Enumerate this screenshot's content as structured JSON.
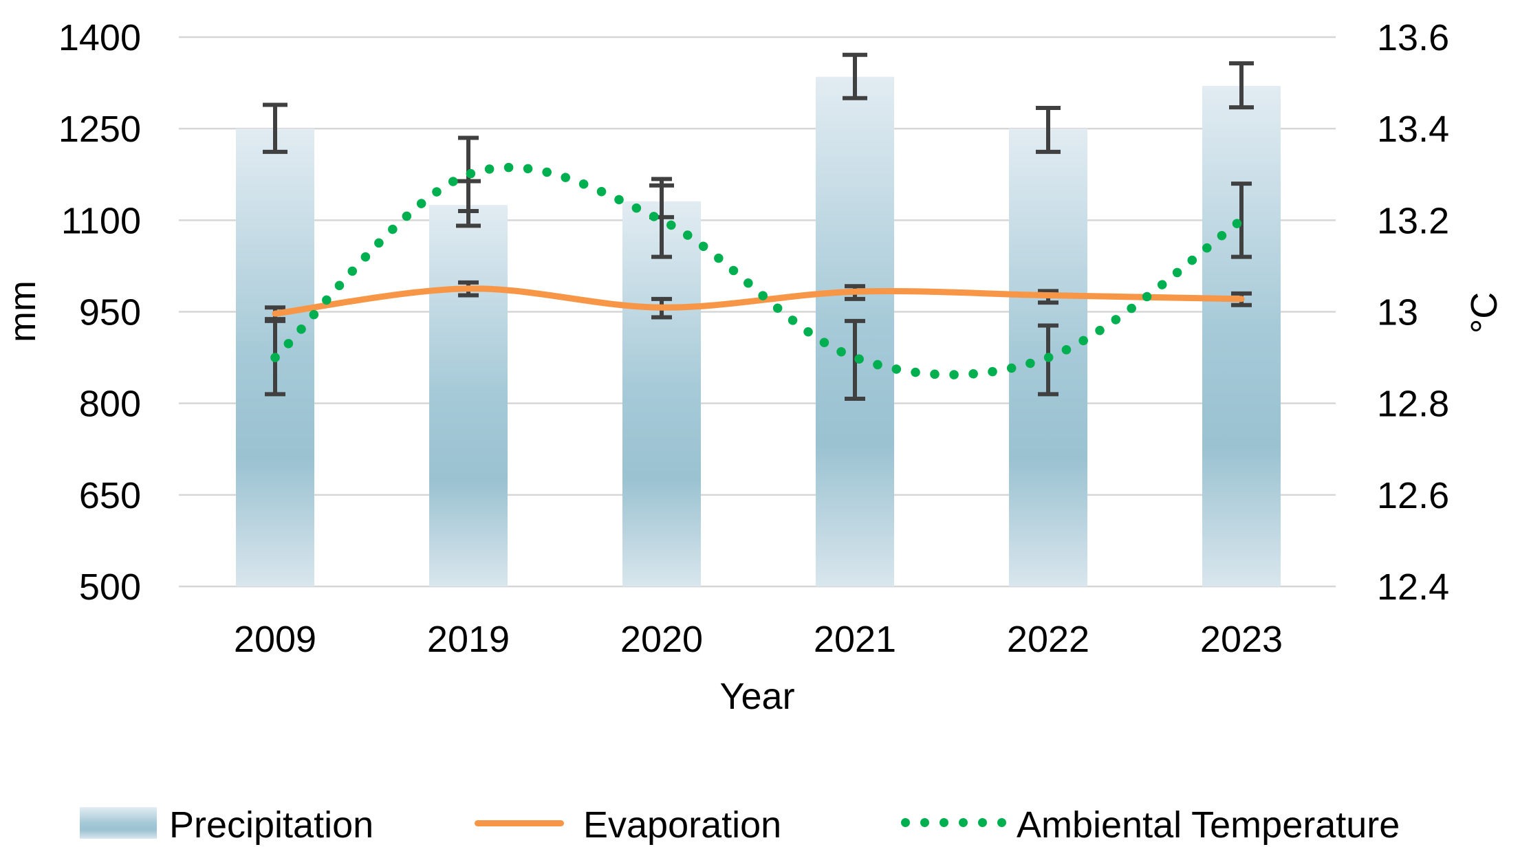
{
  "chart_data": {
    "type": "bar",
    "subtype": "bar + line + dotted-line combo, dual axis, with error bars",
    "title": "",
    "grid": true,
    "legend_position": "bottom",
    "x_axis": {
      "label": "Year",
      "categories": [
        "2009",
        "2019",
        "2020",
        "2021",
        "2022",
        "2023"
      ]
    },
    "left_axis": {
      "label": "mm",
      "min": 500,
      "max": 1400,
      "ticks": [
        "1400",
        "1250",
        "1100",
        "950",
        "800",
        "650",
        "500"
      ],
      "tick_values": [
        1400,
        1250,
        1100,
        950,
        800,
        650,
        500
      ]
    },
    "right_axis": {
      "label": "°C",
      "min": 12.4,
      "max": 13.6,
      "ticks": [
        "13.6",
        "13.4",
        "13.2",
        "13",
        "12.8",
        "12.6",
        "12.4"
      ],
      "tick_values": [
        13.6,
        13.4,
        13.2,
        13.0,
        12.8,
        12.6,
        12.4
      ]
    },
    "series": [
      {
        "name": "Precipitation",
        "type": "bar",
        "axis": "left",
        "unit": "mm",
        "values": [
          1250,
          1125,
          1131,
          1335,
          1250,
          1320
        ],
        "error_low": [
          1212,
          1091,
          1105,
          1300,
          1212,
          1285
        ],
        "error_high": [
          1289,
          1164,
          1157,
          1371,
          1284,
          1357
        ]
      },
      {
        "name": "Evaporation",
        "type": "line",
        "axis": "left",
        "unit": "mm",
        "values": [
          947,
          988,
          957,
          983,
          977,
          971
        ],
        "error_low": [
          938,
          977,
          941,
          971,
          965,
          961
        ],
        "error_high": [
          957,
          998,
          971,
          992,
          984,
          980
        ]
      },
      {
        "name": "Ambiental Temperature",
        "type": "dotted-line",
        "axis": "right",
        "unit": "°C",
        "values": [
          12.9,
          13.3,
          13.2,
          12.9,
          12.9,
          13.2
        ],
        "error_low": [
          12.82,
          13.22,
          13.12,
          12.81,
          12.82,
          13.12
        ],
        "error_high": [
          12.98,
          13.38,
          13.29,
          12.98,
          12.97,
          13.28
        ]
      }
    ],
    "colors": {
      "bar_gradient_top": "#e2ecf2",
      "bar_gradient_mid1": "#a5c9d7",
      "bar_gradient_mid2": "#9ac2d1",
      "bar_gradient_bottom": "#d9e6ed",
      "evaporation_line": "#f79646",
      "temperature_dots": "#00b050",
      "error_bar": "#404040",
      "gridline": "#d6d6d6",
      "text": "#000000"
    }
  }
}
